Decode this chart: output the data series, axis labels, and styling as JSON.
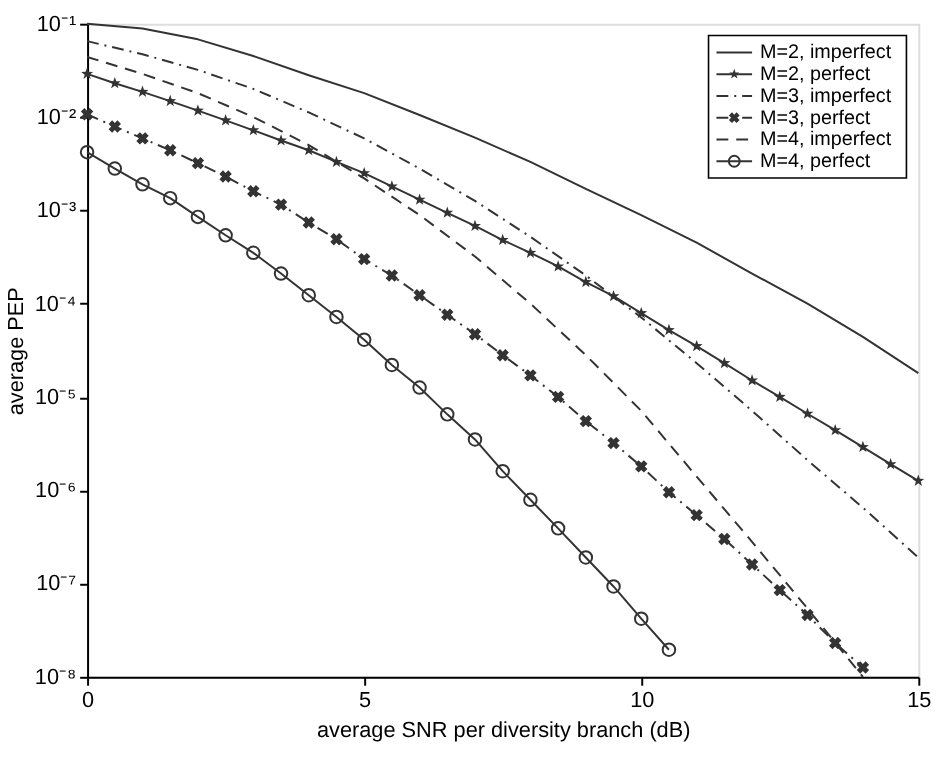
{
  "chart_data": {
    "type": "line",
    "xlabel": "average SNR per diversity branch (dB)",
    "ylabel": "average PEP",
    "log": "y",
    "grid": false,
    "legend": "top right",
    "xlim": [
      0,
      15
    ],
    "xticks": [
      0,
      5,
      10,
      15
    ],
    "ylim": [
      1e-08,
      0.1
    ],
    "yticks": [
      {
        "value": 1e-08,
        "label": "10⁻⁸"
      },
      {
        "value": 1e-07,
        "label": "10⁻⁷"
      },
      {
        "value": 1e-06,
        "label": "10⁻⁶"
      },
      {
        "value": 1e-05,
        "label": "10⁻⁵"
      },
      {
        "value": 0.0001,
        "label": "10⁻⁴"
      },
      {
        "value": 0.001,
        "label": "10⁻³"
      },
      {
        "value": 0.01,
        "label": "10⁻²"
      },
      {
        "value": 0.1,
        "label": "10⁻¹"
      }
    ],
    "series": [
      {
        "name": "M=2, imperfect",
        "color": "#333333",
        "line_style": "solid",
        "marker": "none",
        "x": [
          0,
          1,
          2,
          3,
          4,
          5,
          6,
          7,
          8,
          9,
          10,
          11,
          12,
          13,
          14,
          15
        ],
        "values": [
          0.1,
          0.089,
          0.068,
          0.045,
          0.028,
          0.018,
          0.0105,
          0.006,
          0.0033,
          0.0017,
          0.00089,
          0.00045,
          0.00021,
          0.0001,
          4.4e-05,
          1.8e-05
        ]
      },
      {
        "name": "M=2, perfect",
        "color": "#333333",
        "line_style": "solid",
        "marker": "star",
        "x": [
          0,
          0.5,
          1,
          1.5,
          2,
          2.5,
          3,
          3.5,
          4,
          4.5,
          5,
          5.5,
          6,
          6.5,
          7,
          7.5,
          8,
          8.5,
          9,
          9.5,
          10,
          10.5,
          11,
          11.5,
          12,
          12.5,
          13,
          13.5,
          14,
          14.5,
          15
        ],
        "values": [
          0.029,
          0.023,
          0.0186,
          0.0148,
          0.0117,
          0.0092,
          0.0072,
          0.0056,
          0.0044,
          0.0033,
          0.0025,
          0.0018,
          0.0013,
          0.00094,
          0.00068,
          0.00048,
          0.00035,
          0.00025,
          0.00017,
          0.00012,
          7.9e-05,
          5.2e-05,
          3.5e-05,
          2.3e-05,
          1.5e-05,
          1e-05,
          6.6e-06,
          4.4e-06,
          2.9e-06,
          1.9e-06,
          1.26e-06
        ]
      },
      {
        "name": "M=3, imperfect",
        "color": "#333333",
        "line_style": "dashdot",
        "marker": "none",
        "x": [
          0,
          1,
          2,
          3,
          4,
          5,
          6,
          7,
          8,
          9,
          10,
          11,
          12,
          13,
          14,
          15
        ],
        "values": [
          0.065,
          0.047,
          0.032,
          0.02,
          0.0112,
          0.0059,
          0.0028,
          0.00126,
          0.00052,
          0.0002,
          7.1e-05,
          2.3e-05,
          7.1e-06,
          2.1e-06,
          6.5e-07,
          1.9e-07
        ]
      },
      {
        "name": "M=3, perfect",
        "color": "#333333",
        "line_style": "dashdot",
        "marker": "cross",
        "x": [
          0,
          0.5,
          1,
          1.5,
          2,
          2.5,
          3,
          3.5,
          4,
          4.5,
          5,
          5.5,
          6,
          6.5,
          7,
          7.5,
          8,
          8.5,
          9,
          9.5,
          10,
          10.5,
          11,
          11.5,
          12,
          12.5,
          13,
          13.5,
          14
        ],
        "values": [
          0.0107,
          0.0079,
          0.0059,
          0.0044,
          0.0032,
          0.0023,
          0.0016,
          0.00115,
          0.00074,
          0.00049,
          0.0003,
          0.0002,
          0.000123,
          7.6e-05,
          4.7e-05,
          2.8e-05,
          1.7e-05,
          1e-05,
          5.5e-06,
          3.2e-06,
          1.8e-06,
          9.5e-07,
          5.4e-07,
          3e-07,
          1.6e-07,
          8.5e-08,
          4.6e-08,
          2.3e-08,
          1.26e-08
        ]
      },
      {
        "name": "M=4, imperfect",
        "color": "#333333",
        "line_style": "dashed",
        "marker": "none",
        "x": [
          0,
          1,
          2,
          3,
          4,
          5,
          6,
          7,
          8,
          9,
          10,
          11,
          12,
          13,
          14
        ],
        "values": [
          0.044,
          0.029,
          0.018,
          0.01,
          0.005,
          0.0022,
          0.00089,
          0.00032,
          0.0001,
          2.8e-05,
          7.1e-06,
          1.4e-06,
          2.8e-07,
          5.4e-08,
          1e-08
        ]
      },
      {
        "name": "M=4, perfect",
        "color": "#333333",
        "line_style": "solid",
        "marker": "circle",
        "x": [
          0,
          0.5,
          1,
          1.5,
          2,
          2.5,
          3,
          3.5,
          4,
          4.5,
          5,
          5.5,
          6,
          6.5,
          7,
          7.5,
          8,
          8.5,
          9,
          9.5,
          10,
          10.5
        ],
        "values": [
          0.0042,
          0.0028,
          0.0019,
          0.00135,
          0.00085,
          0.00054,
          0.00035,
          0.00021,
          0.000123,
          7.2e-05,
          4.1e-05,
          2.2e-05,
          1.26e-05,
          6.5e-06,
          3.5e-06,
          1.6e-06,
          7.9e-07,
          3.9e-07,
          1.9e-07,
          9.3e-08,
          4.2e-08,
          1.95e-08
        ]
      }
    ]
  }
}
